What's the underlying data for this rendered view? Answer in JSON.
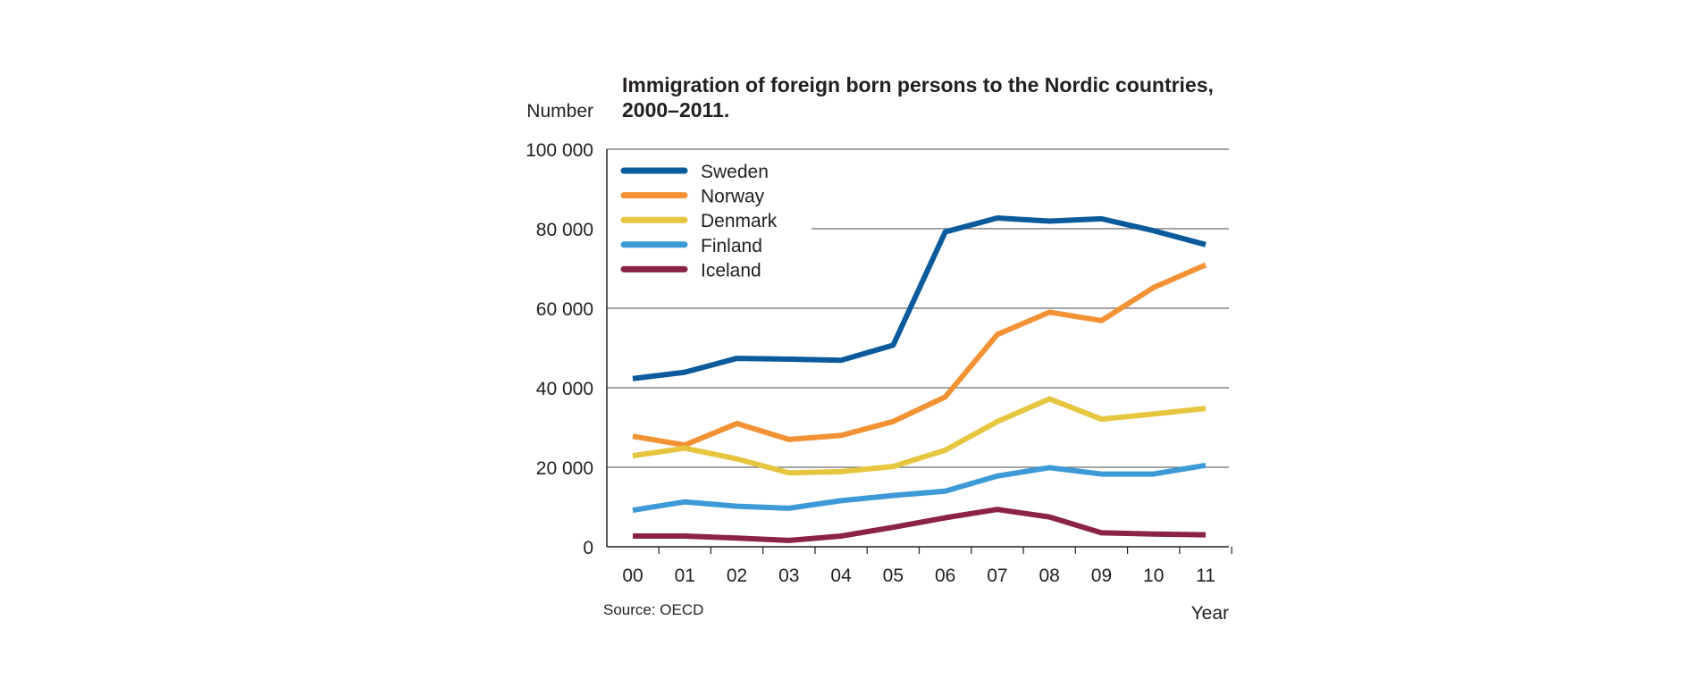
{
  "chart_data": {
    "type": "line",
    "title_line1": "Immigration of foreign born persons to the Nordic countries,",
    "title_line2": "2000–2011.",
    "ylabel": "Number",
    "xlabel": "Year",
    "source": "Source: OECD",
    "ylim": [
      0,
      100000
    ],
    "yticks": [
      0,
      20000,
      40000,
      60000,
      80000,
      100000
    ],
    "ytick_labels": [
      "0",
      "20 000",
      "40 000",
      "60 000",
      "80 000",
      "100 000"
    ],
    "categories": [
      "00",
      "01",
      "02",
      "03",
      "04",
      "05",
      "06",
      "07",
      "08",
      "09",
      "10",
      "11"
    ],
    "grid": "horizontal",
    "legend_placement": "top-left",
    "series": [
      {
        "name": "Sweden",
        "color": "#0a5a9c",
        "values": [
          42300,
          43900,
          47400,
          47200,
          46900,
          50700,
          79200,
          82700,
          81900,
          82500,
          79500,
          76000
        ]
      },
      {
        "name": "Norway",
        "color": "#f39234",
        "values": [
          27800,
          25600,
          31000,
          27000,
          28000,
          31500,
          37700,
          53400,
          59000,
          56900,
          65200,
          70900
        ]
      },
      {
        "name": "Denmark",
        "color": "#e6c63f",
        "values": [
          22900,
          24800,
          22100,
          18600,
          18900,
          20200,
          24300,
          31500,
          37200,
          32100,
          33400,
          34800
        ]
      },
      {
        "name": "Finland",
        "color": "#3d9ad6",
        "values": [
          9200,
          11300,
          10200,
          9700,
          11600,
          12900,
          14000,
          17800,
          19900,
          18300,
          18300,
          20500
        ]
      },
      {
        "name": "Iceland",
        "color": "#8b2346",
        "values": [
          2700,
          2700,
          2200,
          1600,
          2700,
          4900,
          7300,
          9400,
          7500,
          3500,
          3200,
          3000
        ]
      }
    ]
  }
}
